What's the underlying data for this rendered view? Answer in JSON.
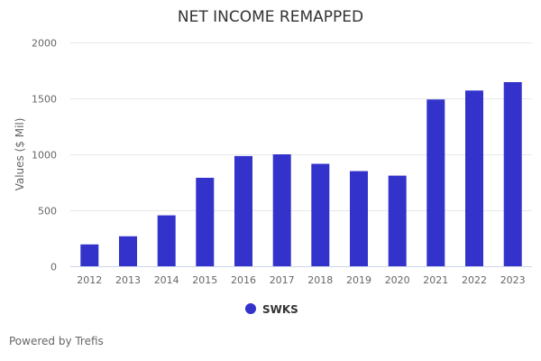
{
  "chart_data": {
    "type": "bar",
    "title": "NET INCOME REMAPPED",
    "ylabel": "Values ($ Mil)",
    "xlabel": "",
    "ylim": [
      0,
      2000
    ],
    "yticks": [
      "0",
      "500",
      "1000",
      "1500",
      "2000"
    ],
    "categories": [
      "2012",
      "2013",
      "2014",
      "2015",
      "2016",
      "2017",
      "2018",
      "2019",
      "2020",
      "2021",
      "2022",
      "2023"
    ],
    "series": [
      {
        "name": "SWKS",
        "color": "#3333cc",
        "values": [
          195,
          268,
          455,
          790,
          985,
          1000,
          915,
          850,
          810,
          1490,
          1570,
          1645
        ]
      }
    ],
    "grid": true,
    "legend_position": "bottom-center"
  },
  "footer": {
    "credit": "Powered by Trefis"
  }
}
